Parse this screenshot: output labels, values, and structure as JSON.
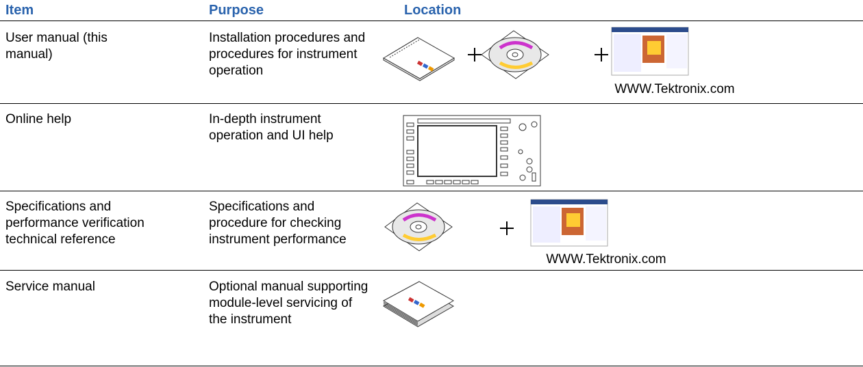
{
  "table": {
    "headers": [
      "Item",
      "Purpose",
      "Location"
    ],
    "rows": [
      {
        "item": "User manual (this manual)",
        "purpose": "Installation procedures and procedures for instrument operation",
        "location_caption": "WWW.Tektronix.com"
      },
      {
        "item": "Online help",
        "purpose": "In-depth instrument operation and UI help"
      },
      {
        "item": "Specifications and performance verification technical reference",
        "purpose": "Specifications and procedure for checking instrument performance",
        "location_caption": "WWW.Tektronix.com"
      },
      {
        "item": "Service manual",
        "purpose": "Optional manual supporting module-level servicing of the instrument"
      }
    ]
  }
}
